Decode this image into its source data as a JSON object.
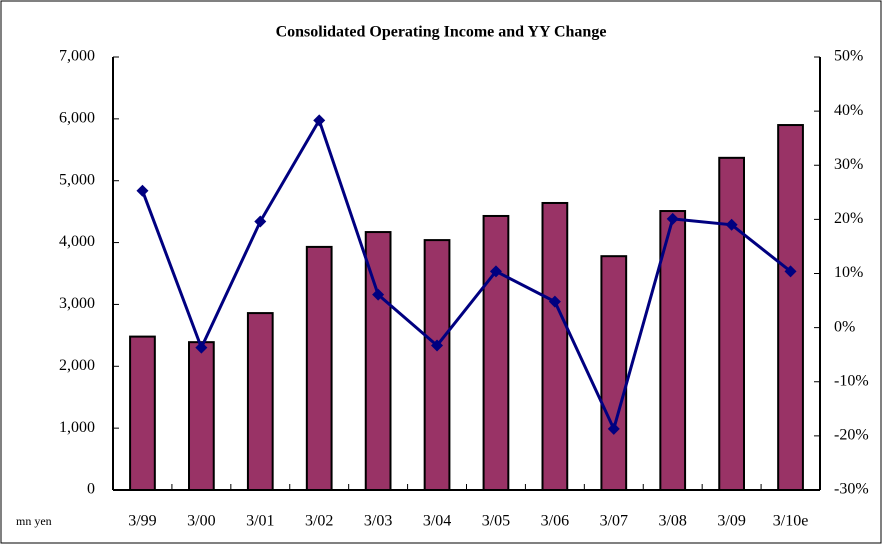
{
  "chart_data": {
    "type": "bar_line",
    "title": "Consolidated Operating Income and YY Change",
    "annotation": "mn yen",
    "categories": [
      "3/99",
      "3/00",
      "3/01",
      "3/02",
      "3/03",
      "3/04",
      "3/05",
      "3/06",
      "3/07",
      "3/08",
      "3/09",
      "3/10e"
    ],
    "series": [
      {
        "name": "Operating Income",
        "type": "bar",
        "color": "#993366",
        "values": [
          2480,
          2390,
          2860,
          3930,
          4170,
          4040,
          4430,
          4640,
          3780,
          4510,
          5370,
          5900
        ]
      },
      {
        "name": "YY Change",
        "type": "line",
        "axis": "y2",
        "color": "#000080",
        "values": [
          25.3,
          -3.7,
          19.6,
          38.3,
          6.1,
          -3.3,
          10.4,
          4.8,
          -18.7,
          20.1,
          19.0,
          10.4
        ]
      }
    ],
    "ylim": [
      0,
      7000
    ],
    "yticks": [
      0,
      {
        "value": 1000,
        "label": "1,000"
      },
      {
        "value": 2000,
        "label": "2,000"
      },
      {
        "value": 3000,
        "label": "3,000"
      },
      {
        "value": 4000,
        "label": "4,000"
      },
      {
        "value": 5000,
        "label": "5,000"
      },
      {
        "value": 6000,
        "label": "6,000"
      },
      {
        "value": 7000,
        "label": "7,000"
      }
    ],
    "y2lim": [
      -30,
      50
    ],
    "y2ticks": [
      {
        "value": -30,
        "label": "-30%"
      },
      {
        "value": -20,
        "label": "-20%"
      },
      {
        "value": -10,
        "label": "-10%"
      },
      {
        "value": 0,
        "label": "0%"
      },
      {
        "value": 10,
        "label": "10%"
      },
      {
        "value": 20,
        "label": "20%"
      },
      {
        "value": 30,
        "label": "30%"
      },
      {
        "value": 40,
        "label": "40%"
      },
      {
        "value": 50,
        "label": "50%"
      }
    ],
    "grid": false
  }
}
